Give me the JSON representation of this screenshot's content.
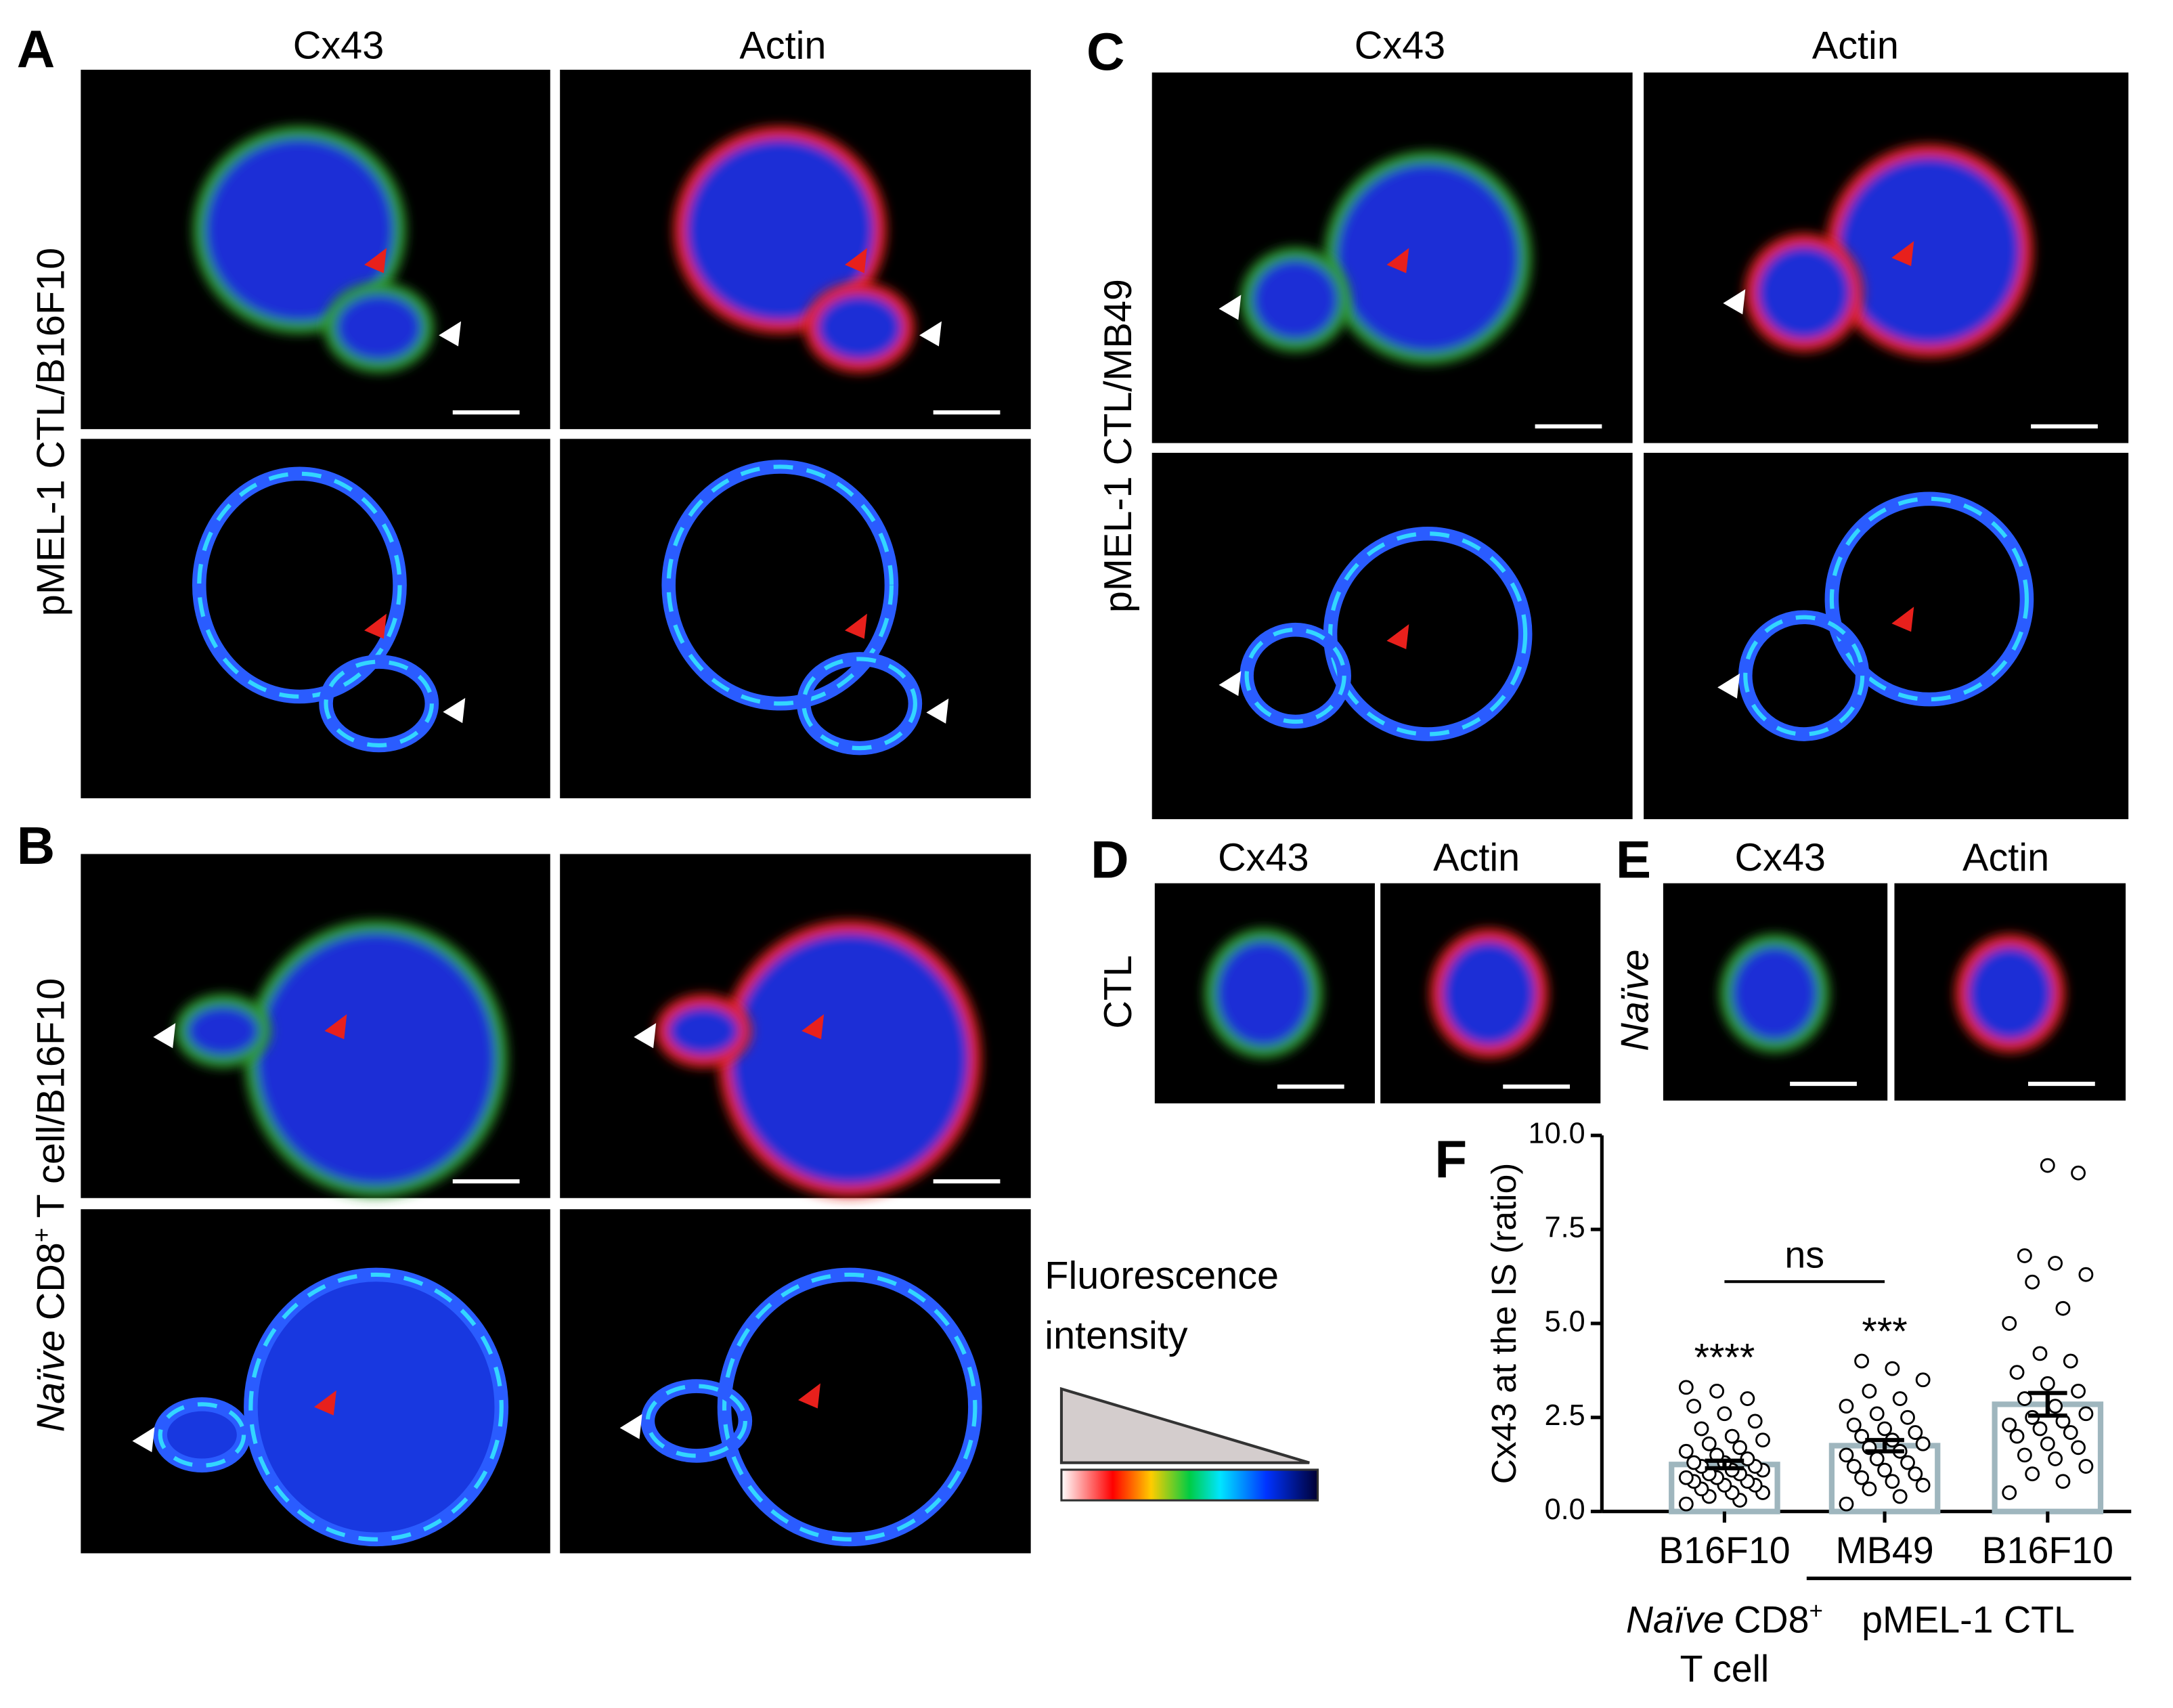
{
  "panels": {
    "A": {
      "label": "A",
      "columns": [
        "Cx43",
        "Actin"
      ],
      "row_label": "pMEL-1 CTL/B16F10"
    },
    "B": {
      "label": "B",
      "row_label": {
        "italic": "Naïve",
        "main": "CD8",
        "sup": "+",
        "rest": "T cell/B16F10"
      }
    },
    "C": {
      "label": "C",
      "columns": [
        "Cx43",
        "Actin"
      ],
      "row_label": "pMEL-1 CTL/MB49"
    },
    "D": {
      "label": "D",
      "columns": [
        "Cx43",
        "Actin"
      ],
      "row_label": "CTL"
    },
    "E": {
      "label": "E",
      "columns": [
        "Cx43",
        "Actin"
      ],
      "row_label": "Naïve"
    },
    "F": {
      "label": "F"
    }
  },
  "legend": {
    "lines": [
      "Fluorescence",
      "intensity"
    ]
  },
  "chart_data": {
    "type": "bar-scatter",
    "ylabel": "Cx43 at the IS (ratio)",
    "categories": [
      "B16F10",
      "MB49",
      "B16F10"
    ],
    "groups": {
      "naive": {
        "italic": "Naïve",
        "main": "CD8",
        "sup": "+",
        "line2": "T cell"
      },
      "ctl": "pMEL-1 CTL"
    },
    "ylim": [
      0,
      10
    ],
    "yticks": [
      {
        "value": 0,
        "label": "0.0"
      },
      {
        "value": 2.5,
        "label": "2.5"
      },
      {
        "value": 5,
        "label": "5.0"
      },
      {
        "value": 7.5,
        "label": "7.5"
      },
      {
        "value": 10,
        "label": "10.0"
      }
    ],
    "values": [
      1.25,
      1.75,
      2.85
    ],
    "errors": [
      0.1,
      0.15,
      0.3
    ],
    "color": "#9fb6be",
    "points": [
      [
        0.2,
        0.3,
        0.4,
        0.5,
        0.5,
        0.6,
        0.7,
        0.7,
        0.8,
        0.8,
        0.9,
        0.9,
        1.0,
        1.0,
        1.1,
        1.1,
        1.2,
        1.2,
        1.3,
        1.3,
        1.4,
        1.5,
        1.6,
        1.7,
        1.8,
        1.9,
        2.0,
        2.2,
        2.4,
        2.6,
        2.8,
        3.0,
        3.2,
        3.3
      ],
      [
        0.2,
        0.4,
        0.6,
        0.7,
        0.8,
        0.9,
        1.0,
        1.1,
        1.2,
        1.3,
        1.4,
        1.5,
        1.6,
        1.7,
        1.8,
        1.9,
        2.0,
        2.1,
        2.2,
        2.3,
        2.5,
        2.6,
        2.8,
        3.0,
        3.2,
        3.5,
        3.8,
        4.0
      ],
      [
        0.5,
        0.8,
        1.0,
        1.2,
        1.4,
        1.5,
        1.7,
        1.8,
        2.0,
        2.1,
        2.2,
        2.3,
        2.4,
        2.5,
        2.6,
        2.8,
        3.0,
        3.2,
        3.4,
        3.7,
        4.0,
        4.2,
        5.0,
        5.4,
        6.1,
        6.3,
        6.6,
        6.8,
        9.0,
        9.2
      ]
    ],
    "significance": [
      "****",
      "***"
    ],
    "comparison": "ns"
  }
}
